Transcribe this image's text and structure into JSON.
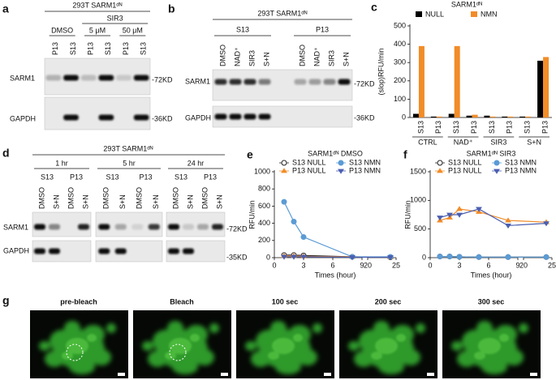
{
  "panel_letters": [
    "a",
    "b",
    "c",
    "d",
    "e",
    "f",
    "g"
  ],
  "panel_a": {
    "header": "293T SARM1ᵈᴺ",
    "group": "SIR3",
    "treatments": [
      "DMSO",
      "5 μM",
      "50 μM"
    ],
    "lanes": [
      "P13",
      "S13",
      "P13",
      "S13",
      "P13",
      "S13"
    ],
    "rows": [
      "SARM1",
      "GAPDH"
    ],
    "markers": [
      "-72KD",
      "-36KD"
    ]
  },
  "panel_b": {
    "header": "293T SARM1ᵈᴺ",
    "groups": [
      "S13",
      "P13"
    ],
    "lanes": [
      "DMSO",
      "NAD⁺",
      "SIR3",
      "S+N",
      "DMSO",
      "NAD⁺",
      "SIR3",
      "S+N"
    ],
    "rows": [
      "SARM1",
      "GAPDH"
    ],
    "markers": [
      "-72KD",
      "-36KD"
    ]
  },
  "panel_d": {
    "header": "293T SARM1ᵈᴺ",
    "times": [
      "1 hr",
      "5 hr",
      "24 hr"
    ],
    "fractions": [
      "S13",
      "P13",
      "S13",
      "P13",
      "S13",
      "P13"
    ],
    "lanes": [
      "DMSO",
      "S+N",
      "DMSO",
      "S+N",
      "DMSO",
      "S+N",
      "DMSO",
      "S+N",
      "DMSO",
      "S+N",
      "DMSO",
      "S+N"
    ],
    "rows": [
      "SARM1",
      "GAPDH"
    ],
    "markers": [
      "-72KD",
      "-35KD"
    ]
  },
  "panel_g": {
    "labels": [
      "pre-bleach",
      "Bleach",
      "100 sec",
      "200 sec",
      "300 sec"
    ]
  },
  "chart_data": [
    {
      "type": "bar",
      "title": "SARM1ᵈᴺ",
      "y_label": "(slop)RFU/min",
      "categories": [
        "S13",
        "P13",
        "S13",
        "P13",
        "S13",
        "P13",
        "S13",
        "P13"
      ],
      "groups": [
        "CTRL",
        "NAD⁺",
        "SIR3",
        "S+N"
      ],
      "series": [
        {
          "name": "NULL",
          "color": "#000000",
          "values": [
            20,
            5,
            20,
            10,
            10,
            5,
            5,
            310
          ]
        },
        {
          "name": "NMN",
          "color": "#f28c28",
          "values": [
            390,
            5,
            390,
            15,
            5,
            5,
            5,
            330
          ]
        }
      ],
      "ylim": [
        0,
        500
      ],
      "yticks": [
        0,
        100,
        200,
        300,
        400,
        500
      ]
    },
    {
      "type": "line",
      "title": "SARM1ᵈᴺ DMSO",
      "x_label": "Times (hour)",
      "y_label": "RFU/min",
      "x": [
        1,
        2,
        3,
        8,
        24
      ],
      "series": [
        {
          "name": "S13 NULL",
          "color": "#222222",
          "marker": "circle-open",
          "values": [
            30,
            30,
            25,
            10,
            5
          ]
        },
        {
          "name": "P13 NULL",
          "color": "#f28c28",
          "marker": "triangle-up",
          "values": [
            20,
            20,
            15,
            10,
            5
          ]
        },
        {
          "name": "S13 NMN",
          "color": "#5b9bd5",
          "marker": "circle",
          "values": [
            650,
            420,
            240,
            10,
            10
          ]
        },
        {
          "name": "P13 NMN",
          "color": "#4b5fb0",
          "marker": "triangle-down",
          "values": [
            10,
            10,
            10,
            5,
            5
          ]
        }
      ],
      "xlim": [
        0,
        25
      ],
      "xbreak": [
        9,
        20
      ],
      "xticks": [
        0,
        3,
        6,
        9,
        20,
        25
      ],
      "ylim": [
        0,
        1000
      ],
      "yticks": [
        0,
        200,
        400,
        600,
        800,
        1000
      ]
    },
    {
      "type": "line",
      "title": "SARM1ᵈᴺ SIR3",
      "x_label": "Times (hour)",
      "y_label": "RFU/min",
      "x": [
        1,
        2,
        3,
        5,
        8,
        24
      ],
      "series": [
        {
          "name": "S13 NULL",
          "color": "#222222",
          "marker": "circle-open",
          "values": [
            20,
            20,
            15,
            10,
            10,
            10
          ]
        },
        {
          "name": "P13 NULL",
          "color": "#f28c28",
          "marker": "triangle-up",
          "values": [
            650,
            700,
            850,
            800,
            650,
            620
          ]
        },
        {
          "name": "S13 NMN",
          "color": "#5b9bd5",
          "marker": "circle",
          "values": [
            20,
            20,
            15,
            10,
            10,
            10
          ]
        },
        {
          "name": "P13 NMN",
          "color": "#4b5fb0",
          "marker": "triangle-down",
          "values": [
            700,
            750,
            750,
            850,
            560,
            600
          ]
        }
      ],
      "xlim": [
        0,
        25
      ],
      "xbreak": [
        9,
        20
      ],
      "xticks": [
        0,
        3,
        6,
        9,
        20,
        25
      ],
      "ylim": [
        0,
        1500
      ],
      "yticks": [
        0,
        500,
        1000,
        1500
      ]
    }
  ]
}
